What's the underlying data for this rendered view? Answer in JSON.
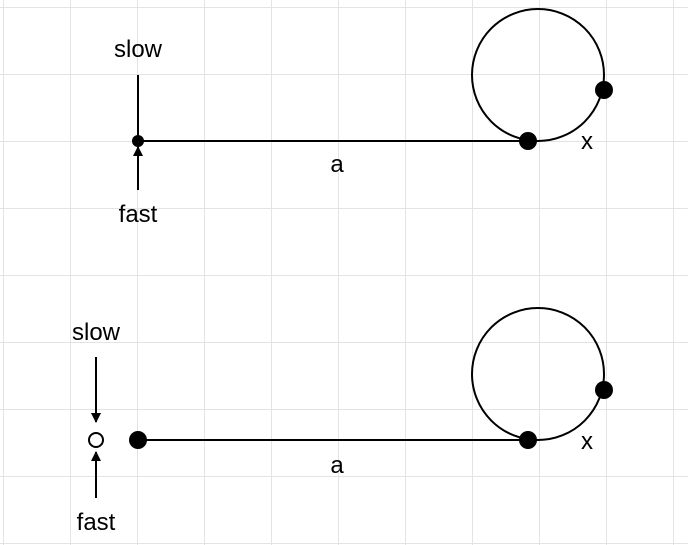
{
  "diagrams": [
    {
      "slow_label": "slow",
      "fast_label": "fast",
      "segment_label": "a",
      "cycle_label": "x",
      "slow_fast_marker": "filled"
    },
    {
      "slow_label": "slow",
      "fast_label": "fast",
      "segment_label": "a",
      "cycle_label": "x",
      "slow_fast_marker": "hollow"
    }
  ],
  "colors": {
    "stroke": "#000000",
    "grid": "#e3e3e3",
    "background": "#ffffff"
  }
}
